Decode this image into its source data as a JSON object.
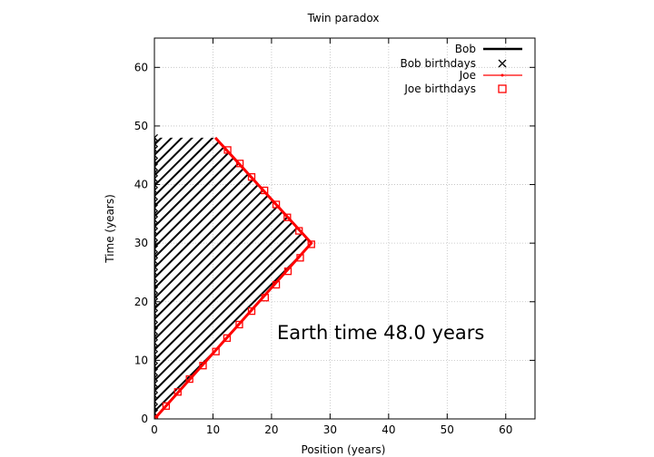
{
  "chart_data": {
    "type": "line",
    "title": "Twin paradox",
    "xlabel": "Position (years)",
    "ylabel": "Time (years)",
    "xlim": [
      0,
      65
    ],
    "ylim": [
      0,
      65
    ],
    "xticks": [
      0,
      10,
      20,
      30,
      40,
      50,
      60
    ],
    "yticks": [
      0,
      10,
      20,
      30,
      40,
      50,
      60
    ],
    "grid": true,
    "legend_position": "top-right",
    "annotation": "Earth time 48.0 years",
    "legend": [
      "Bob",
      "Bob birthdays",
      "Joe",
      "Joe birthdays"
    ],
    "series": [
      {
        "name": "Bob",
        "style": "line",
        "color": "#000000",
        "x": [
          0,
          0
        ],
        "y": [
          0,
          48
        ]
      },
      {
        "name": "Bob birthdays",
        "style": "marker-x",
        "color": "#000000",
        "x": [
          0,
          0,
          0,
          0,
          0,
          0,
          0,
          0,
          0,
          0,
          0,
          0,
          0,
          0,
          0,
          0,
          0,
          0,
          0,
          0,
          0,
          0,
          0,
          0,
          0,
          0,
          0,
          0,
          0,
          0,
          0,
          0,
          0,
          0,
          0,
          0,
          0,
          0,
          0,
          0,
          0,
          0,
          0,
          0,
          0,
          0,
          0,
          0,
          0
        ],
        "y": [
          0,
          1,
          2,
          3,
          4,
          5,
          6,
          7,
          8,
          9,
          10,
          11,
          12,
          13,
          14,
          15,
          16,
          17,
          18,
          19,
          20,
          21,
          22,
          23,
          24,
          25,
          26,
          27,
          28,
          29,
          30,
          31,
          32,
          33,
          34,
          35,
          36,
          37,
          38,
          39,
          40,
          41,
          42,
          43,
          44,
          45,
          46,
          47,
          48
        ]
      },
      {
        "name": "Joe",
        "style": "line",
        "color": "#ff0000",
        "x": [
          0,
          26.8,
          10.4
        ],
        "y": [
          0,
          30,
          48
        ]
      },
      {
        "name": "Joe birthdays",
        "style": "marker-square",
        "color": "#ff0000",
        "x": [
          0,
          2.0,
          4.0,
          6.0,
          8.3,
          10.5,
          12.4,
          14.5,
          16.6,
          18.9,
          20.8,
          22.8,
          24.9,
          26.8,
          24.7,
          22.7,
          20.8,
          18.8,
          16.6,
          14.6,
          12.5
        ],
        "y": [
          0,
          2.2,
          4.6,
          6.8,
          9.1,
          11.5,
          13.8,
          16.1,
          18.4,
          20.7,
          22.9,
          25.2,
          27.5,
          29.8,
          32.1,
          34.4,
          36.6,
          39.0,
          41.3,
          43.6,
          45.9
        ]
      }
    ]
  }
}
